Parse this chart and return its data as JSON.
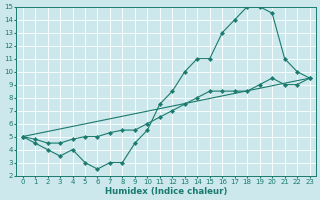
{
  "xlabel": "Humidex (Indice chaleur)",
  "xlim": [
    -0.5,
    23.5
  ],
  "ylim": [
    2,
    15
  ],
  "xticks": [
    0,
    1,
    2,
    3,
    4,
    5,
    6,
    7,
    8,
    9,
    10,
    11,
    12,
    13,
    14,
    15,
    16,
    17,
    18,
    19,
    20,
    21,
    22,
    23
  ],
  "yticks": [
    2,
    3,
    4,
    5,
    6,
    7,
    8,
    9,
    10,
    11,
    12,
    13,
    14,
    15
  ],
  "bg_color": "#cce8ec",
  "line_color": "#1a7a6e",
  "grid_color": "#ffffff",
  "line1_x": [
    0,
    1,
    2,
    3,
    4,
    5,
    6,
    7,
    8,
    9,
    10,
    11,
    12,
    13,
    14,
    15,
    16,
    17,
    18,
    19,
    20,
    21,
    22,
    23
  ],
  "line1_y": [
    5.0,
    4.5,
    4.0,
    3.5,
    4.0,
    3.0,
    2.5,
    3.0,
    3.0,
    4.5,
    5.5,
    7.5,
    8.5,
    10.0,
    11.0,
    11.0,
    13.0,
    14.0,
    15.0,
    15.0,
    14.5,
    11.0,
    10.0,
    9.5
  ],
  "line2_x": [
    0,
    1,
    2,
    3,
    4,
    5,
    6,
    7,
    8,
    9,
    10,
    11,
    12,
    13,
    14,
    15,
    16,
    17,
    18,
    19,
    20,
    21,
    22,
    23
  ],
  "line2_y": [
    5.0,
    4.8,
    4.5,
    4.5,
    4.8,
    5.0,
    5.0,
    5.3,
    5.5,
    5.5,
    6.0,
    6.5,
    7.0,
    7.5,
    8.0,
    8.5,
    8.5,
    8.5,
    8.5,
    9.0,
    9.5,
    9.0,
    9.0,
    9.5
  ],
  "line3_x": [
    0,
    23
  ],
  "line3_y": [
    5.0,
    9.5
  ],
  "marker": "D",
  "marker_size": 2.2,
  "linewidth": 0.8,
  "tick_fontsize": 5.0,
  "xlabel_fontsize": 6.2
}
